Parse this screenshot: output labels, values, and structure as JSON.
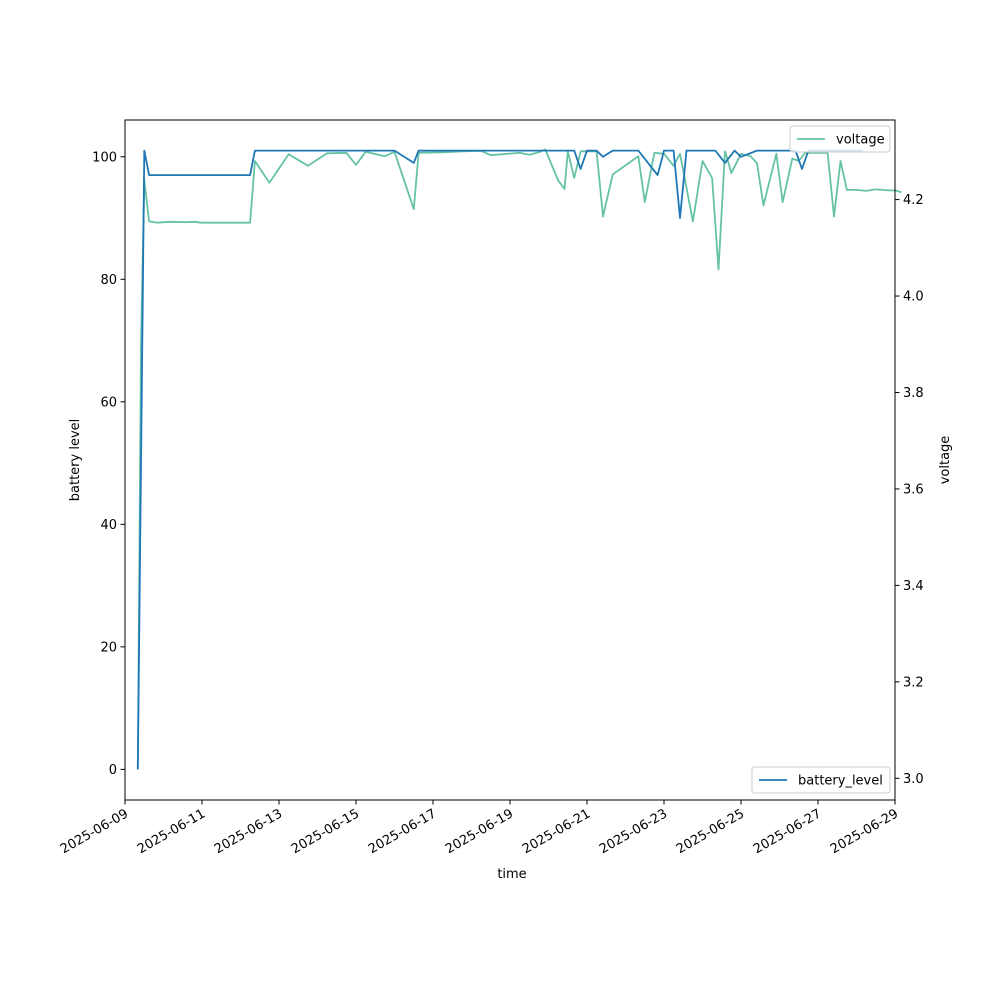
{
  "chart_data": {
    "type": "line",
    "xlabel": "time",
    "ylabel": "battery level",
    "y2label": "voltage",
    "xlim": [
      "2025-06-09",
      "2025-06-29"
    ],
    "x_ticks": [
      "2025-06-09",
      "2025-06-11",
      "2025-06-13",
      "2025-06-15",
      "2025-06-17",
      "2025-06-19",
      "2025-06-21",
      "2025-06-23",
      "2025-06-25",
      "2025-06-27",
      "2025-06-29"
    ],
    "ylim": [
      -5,
      106
    ],
    "y_ticks": [
      0,
      20,
      40,
      60,
      80,
      100
    ],
    "y2lim": [
      2.955,
      4.365
    ],
    "y2_ticks": [
      3.0,
      3.2,
      3.4,
      3.6,
      3.8,
      4.0,
      4.2
    ],
    "grid": false,
    "series": [
      {
        "name": "battery_level",
        "axis": "left",
        "color": "#1f77b4",
        "legend_position": "lower-right",
        "points": [
          [
            "2025-06-09 08:00",
            0
          ],
          [
            "2025-06-09 12:00",
            101
          ],
          [
            "2025-06-09 15:00",
            97
          ],
          [
            "2025-06-12 06:00",
            97
          ],
          [
            "2025-06-12 09:00",
            101
          ],
          [
            "2025-06-16 00:00",
            101
          ],
          [
            "2025-06-16 12:00",
            99
          ],
          [
            "2025-06-16 15:00",
            101
          ],
          [
            "2025-06-20 16:00",
            101
          ],
          [
            "2025-06-20 20:00",
            98
          ],
          [
            "2025-06-21 00:00",
            101
          ],
          [
            "2025-06-21 06:00",
            101
          ],
          [
            "2025-06-21 10:00",
            100
          ],
          [
            "2025-06-21 16:00",
            101
          ],
          [
            "2025-06-22 08:00",
            101
          ],
          [
            "2025-06-22 20:00",
            97
          ],
          [
            "2025-06-23 00:00",
            101
          ],
          [
            "2025-06-23 06:00",
            101
          ],
          [
            "2025-06-23 10:00",
            90
          ],
          [
            "2025-06-23 14:00",
            101
          ],
          [
            "2025-06-24 08:00",
            101
          ],
          [
            "2025-06-24 14:00",
            99
          ],
          [
            "2025-06-24 20:00",
            101
          ],
          [
            "2025-06-25 00:00",
            100
          ],
          [
            "2025-06-25 10:00",
            101
          ],
          [
            "2025-06-26 10:00",
            101
          ],
          [
            "2025-06-26 14:00",
            98
          ],
          [
            "2025-06-26 18:00",
            101
          ],
          [
            "2025-06-28 04:00",
            101
          ]
        ]
      },
      {
        "name": "voltage",
        "axis": "right",
        "color": "#66c2a5",
        "legend_position": "upper-right",
        "points": [
          [
            "2025-06-09 08:00",
            3.02
          ],
          [
            "2025-06-09 10:00",
            3.9
          ],
          [
            "2025-06-09 12:00",
            4.24
          ],
          [
            "2025-06-09 15:00",
            4.155
          ],
          [
            "2025-06-09 20:00",
            4.152
          ],
          [
            "2025-06-10 04:00",
            4.154
          ],
          [
            "2025-06-10 14:00",
            4.153
          ],
          [
            "2025-06-10 19:00",
            4.154
          ],
          [
            "2025-06-11 00:00",
            4.152
          ],
          [
            "2025-06-12 06:00",
            4.152
          ],
          [
            "2025-06-12 09:00",
            4.28
          ],
          [
            "2025-06-12 18:00",
            4.235
          ],
          [
            "2025-06-13 06:00",
            4.294
          ],
          [
            "2025-06-13 18:00",
            4.27
          ],
          [
            "2025-06-14 06:00",
            4.296
          ],
          [
            "2025-06-14 18:00",
            4.297
          ],
          [
            "2025-06-15 00:00",
            4.272
          ],
          [
            "2025-06-15 06:00",
            4.299
          ],
          [
            "2025-06-15 18:00",
            4.29
          ],
          [
            "2025-06-16 00:00",
            4.299
          ],
          [
            "2025-06-16 12:00",
            4.18
          ],
          [
            "2025-06-16 15:00",
            4.297
          ],
          [
            "2025-06-17 06:00",
            4.298
          ],
          [
            "2025-06-17 18:00",
            4.3
          ],
          [
            "2025-06-18 06:00",
            4.301
          ],
          [
            "2025-06-18 12:00",
            4.292
          ],
          [
            "2025-06-19 06:00",
            4.297
          ],
          [
            "2025-06-19 12:00",
            4.293
          ],
          [
            "2025-06-19 18:00",
            4.298
          ],
          [
            "2025-06-19 22:00",
            4.304
          ],
          [
            "2025-06-20 06:00",
            4.24
          ],
          [
            "2025-06-20 10:00",
            4.222
          ],
          [
            "2025-06-20 12:00",
            4.3
          ],
          [
            "2025-06-20 16:00",
            4.245
          ],
          [
            "2025-06-20 20:00",
            4.3
          ],
          [
            "2025-06-21 06:00",
            4.3
          ],
          [
            "2025-06-21 10:00",
            4.165
          ],
          [
            "2025-06-21 16:00",
            4.252
          ],
          [
            "2025-06-22 08:00",
            4.29
          ],
          [
            "2025-06-22 12:00",
            4.195
          ],
          [
            "2025-06-22 18:00",
            4.297
          ],
          [
            "2025-06-23 00:00",
            4.295
          ],
          [
            "2025-06-23 06:00",
            4.27
          ],
          [
            "2025-06-23 10:00",
            4.295
          ],
          [
            "2025-06-23 18:00",
            4.155
          ],
          [
            "2025-06-24 00:00",
            4.28
          ],
          [
            "2025-06-24 06:00",
            4.245
          ],
          [
            "2025-06-24 10:00",
            4.055
          ],
          [
            "2025-06-24 14:00",
            4.3
          ],
          [
            "2025-06-24 18:00",
            4.255
          ],
          [
            "2025-06-25 00:00",
            4.295
          ],
          [
            "2025-06-25 06:00",
            4.29
          ],
          [
            "2025-06-25 10:00",
            4.275
          ],
          [
            "2025-06-25 14:00",
            4.188
          ],
          [
            "2025-06-25 22:00",
            4.295
          ],
          [
            "2025-06-26 02:00",
            4.195
          ],
          [
            "2025-06-26 08:00",
            4.285
          ],
          [
            "2025-06-26 12:00",
            4.28
          ],
          [
            "2025-06-26 16:00",
            4.297
          ],
          [
            "2025-06-27 06:00",
            4.297
          ],
          [
            "2025-06-27 10:00",
            4.165
          ],
          [
            "2025-06-27 14:00",
            4.28
          ],
          [
            "2025-06-27 18:00",
            4.22
          ],
          [
            "2025-06-28 00:00",
            4.22
          ],
          [
            "2025-06-28 06:00",
            4.218
          ],
          [
            "2025-06-28 12:00",
            4.221
          ],
          [
            "2025-06-28 20:00",
            4.219
          ],
          [
            "2025-06-29 00:00",
            4.219
          ],
          [
            "2025-06-29 04:00",
            4.215
          ]
        ]
      }
    ]
  }
}
